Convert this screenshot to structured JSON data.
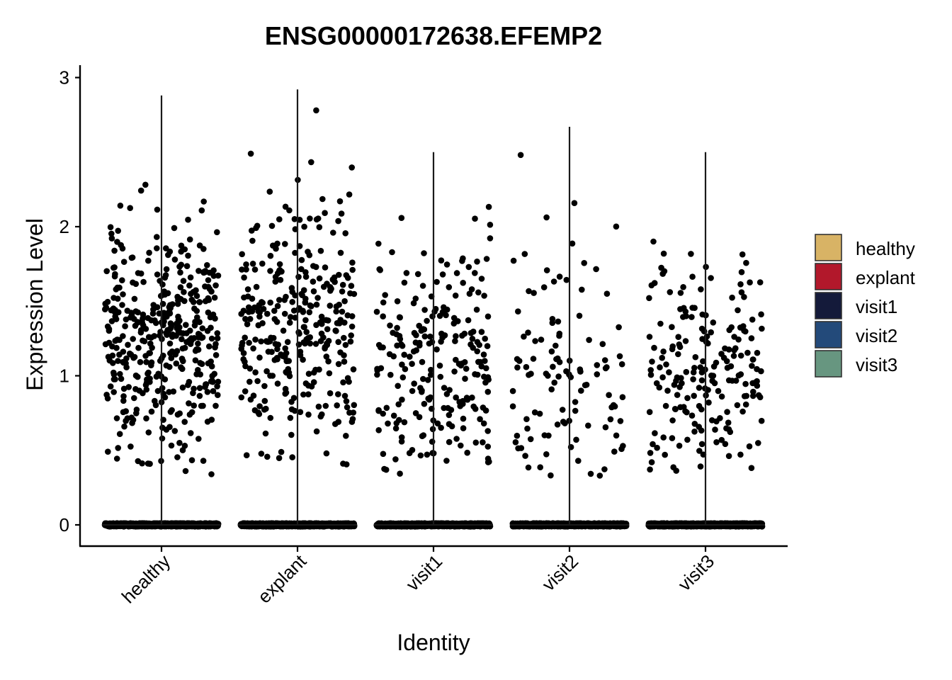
{
  "chart_data": {
    "type": "violin",
    "title": "ENSG00000172638.EFEMP2",
    "xlabel": "Identity",
    "ylabel": "Expression Level",
    "ylim": [
      -0.15,
      3.05
    ],
    "yticks": [
      0,
      1,
      2,
      3
    ],
    "grid": false,
    "legend_position": "right",
    "categories": [
      "healthy",
      "explant",
      "visit1",
      "visit2",
      "visit3"
    ],
    "series": [
      {
        "name": "healthy",
        "color": "#D8B365",
        "max": 2.88,
        "nonzero_points": 420,
        "zero_points": 900,
        "mean_nonzero": 1.22,
        "sd_nonzero": 0.38
      },
      {
        "name": "explant",
        "color": "#B2182B",
        "max": 2.92,
        "nonzero_points": 320,
        "zero_points": 900,
        "mean_nonzero": 1.35,
        "sd_nonzero": 0.42
      },
      {
        "name": "visit1",
        "color": "#141A3A",
        "max": 2.5,
        "nonzero_points": 230,
        "zero_points": 900,
        "mean_nonzero": 1.08,
        "sd_nonzero": 0.4
      },
      {
        "name": "visit2",
        "color": "#234A7A",
        "max": 2.67,
        "nonzero_points": 110,
        "zero_points": 900,
        "mean_nonzero": 1.05,
        "sd_nonzero": 0.45
      },
      {
        "name": "visit3",
        "color": "#679680",
        "max": 2.5,
        "nonzero_points": 200,
        "zero_points": 900,
        "mean_nonzero": 1.02,
        "sd_nonzero": 0.34
      }
    ],
    "legend": [
      {
        "label": "healthy",
        "color": "#D8B365"
      },
      {
        "label": "explant",
        "color": "#B2182B"
      },
      {
        "label": "visit1",
        "color": "#141A3A"
      },
      {
        "label": "visit2",
        "color": "#234A7A"
      },
      {
        "label": "visit3",
        "color": "#679680"
      }
    ]
  }
}
